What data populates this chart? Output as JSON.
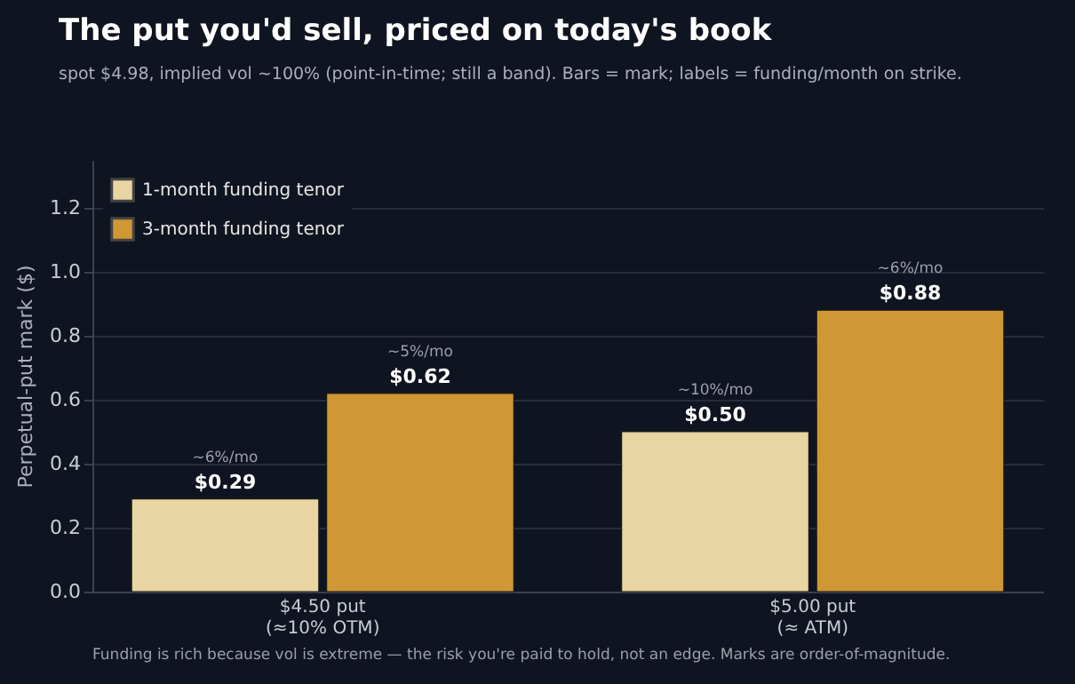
{
  "chart_data": {
    "type": "bar",
    "title": "The put you'd sell, priced on today's book",
    "subtitle": "spot $4.98, implied vol ~100% (point-in-time; still a band). Bars = mark; labels = funding/month on strike.",
    "ylabel": "Perpetual-put mark ($)",
    "categories": [
      "$4.50 put\n(≈10% OTM)",
      "$5.00 put\n(≈ ATM)"
    ],
    "series": [
      {
        "name": "1-month funding tenor",
        "color": "#e9d5a1",
        "values": [
          0.29,
          0.5
        ],
        "value_labels": [
          "$0.29",
          "$0.50"
        ]
      },
      {
        "name": "3-month funding tenor",
        "color": "#d09735",
        "values": [
          0.62,
          0.88
        ],
        "value_labels": [
          "$0.62",
          "$0.88"
        ]
      }
    ],
    "ylim": [
      0,
      1.35
    ],
    "yticks": [
      {
        "value": 0,
        "label": "0.0"
      },
      0.2,
      0.4,
      0.6,
      0.8,
      {
        "value": 1,
        "label": "1.0"
      },
      1.2
    ],
    "grid": "y",
    "legend": "top left",
    "annotations": [
      "~6%/mo",
      "~5%/mo",
      "~10%/mo",
      "~6%/mo",
      "Funding is rich because vol is extreme — the risk you're paid to hold, not an edge. Marks are order-of-magnitude."
    ]
  }
}
